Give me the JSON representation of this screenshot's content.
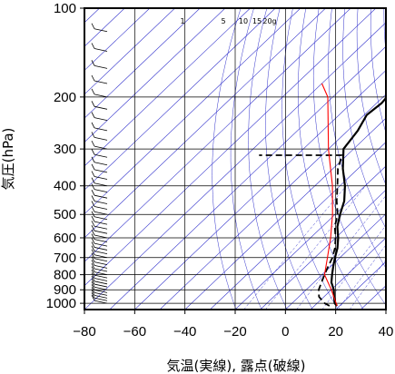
{
  "chart_data": {
    "type": "line",
    "xlabel": "気温(実線), 露点(破線)",
    "ylabel": "気圧(hPa)",
    "x_axis": {
      "range": [
        -80,
        40
      ],
      "ticks": [
        -80,
        -60,
        -40,
        -20,
        0,
        20,
        40
      ]
    },
    "y_axis": {
      "scale": "log",
      "reversed": true,
      "range": [
        100,
        1050
      ],
      "ticks": [
        100,
        200,
        300,
        400,
        500,
        600,
        700,
        800,
        900,
        1000
      ]
    },
    "mixing_ratio_labels": [
      "1",
      "5",
      "10",
      "15",
      "20g"
    ],
    "colors": {
      "temperature": "#000000",
      "dewpoint": "#000000",
      "parcel": "#ff0000",
      "reference_lines": "#3333cc",
      "grid": "#000000"
    },
    "series": [
      {
        "type": "line",
        "style": "solid",
        "values": [
          {
            "p": 1020,
            "t": 19
          },
          {
            "p": 1000,
            "t": 17
          },
          {
            "p": 950,
            "t": 14
          },
          {
            "p": 900,
            "t": 11
          },
          {
            "p": 850,
            "t": 7
          },
          {
            "p": 800,
            "t": 4
          },
          {
            "p": 750,
            "t": 1
          },
          {
            "p": 700,
            "t": -2
          },
          {
            "p": 650,
            "t": -5
          },
          {
            "p": 600,
            "t": -9
          },
          {
            "p": 550,
            "t": -14
          },
          {
            "p": 500,
            "t": -18
          },
          {
            "p": 450,
            "t": -22
          },
          {
            "p": 400,
            "t": -28
          },
          {
            "p": 350,
            "t": -36
          },
          {
            "p": 300,
            "t": -44
          },
          {
            "p": 260,
            "t": -46
          },
          {
            "p": 230,
            "t": -49
          },
          {
            "p": 210,
            "t": -48
          },
          {
            "p": 190,
            "t": -49
          },
          {
            "p": 160,
            "t": -51
          },
          {
            "p": 140,
            "t": -54
          },
          {
            "p": 120,
            "t": -58
          },
          {
            "p": 100,
            "t": -62
          }
        ]
      },
      {
        "type": "line",
        "style": "dashed",
        "values": [
          {
            "p": 1020,
            "t": 16
          },
          {
            "p": 1000,
            "t": 13
          },
          {
            "p": 950,
            "t": 8
          },
          {
            "p": 900,
            "t": 5
          },
          {
            "p": 850,
            "t": 3
          },
          {
            "p": 800,
            "t": 1
          },
          {
            "p": 750,
            "t": -1
          },
          {
            "p": 700,
            "t": -3
          },
          {
            "p": 650,
            "t": -6
          },
          {
            "p": 600,
            "t": -10
          },
          {
            "p": 550,
            "t": -15
          },
          {
            "p": 500,
            "t": -19
          },
          {
            "p": 450,
            "t": -25
          },
          {
            "p": 400,
            "t": -31
          },
          {
            "p": 350,
            "t": -38
          },
          {
            "p": 315,
            "t": -42
          },
          {
            "p": 315,
            "t": -75
          }
        ]
      },
      {
        "type": "line",
        "style": "solid",
        "values": [
          {
            "p": 1020,
            "t": 19
          },
          {
            "p": 900,
            "t": 10
          },
          {
            "p": 800,
            "t": 1
          },
          {
            "p": 700,
            "t": -5
          },
          {
            "p": 600,
            "t": -12
          },
          {
            "p": 500,
            "t": -21
          },
          {
            "p": 400,
            "t": -33
          },
          {
            "p": 300,
            "t": -50
          },
          {
            "p": 200,
            "t": -72
          },
          {
            "p": 180,
            "t": -80
          }
        ]
      }
    ],
    "wind_barbs": true,
    "grid": true,
    "legend": "none"
  }
}
